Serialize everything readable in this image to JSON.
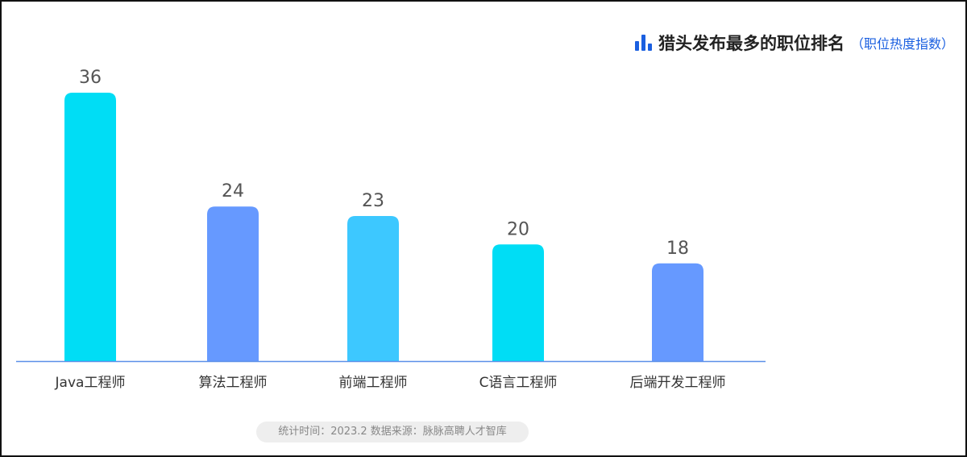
{
  "chart_data": {
    "type": "bar",
    "title": "猎头发布最多的职位排名",
    "subtitle": "（职位热度指数）",
    "categories": [
      "Java工程师",
      "算法工程师",
      "前端工程师",
      "C语言工程师",
      "后端开发工程师"
    ],
    "values": [
      36,
      24,
      23,
      20,
      18
    ],
    "colors": [
      "#00DDF5",
      "#6699FF",
      "#3DC8FF",
      "#00DDF5",
      "#6699FF"
    ],
    "axis_color": "#5B8FE8",
    "ylim": [
      7.7,
      36
    ],
    "grid": false,
    "xlabel": "",
    "ylabel": ""
  },
  "footer": "统计时间：2023.2  数据来源：脉脉高聘人才智库",
  "accent": "#1A5FE0"
}
